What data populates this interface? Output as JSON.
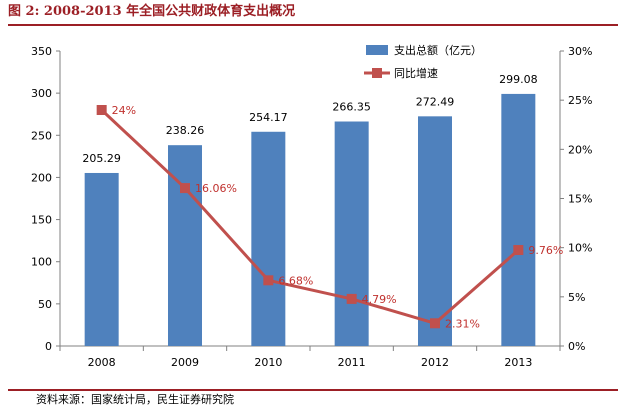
{
  "caption": "图 2: 2008-2013 年全国公共财政体育支出概况",
  "source": "资料来源：国家统计局，民生证券研究院",
  "colors": {
    "bar": "#4f81bd",
    "line": "#c0504d",
    "caption": "#9c1f25"
  },
  "chart_data": {
    "type": "bar+line",
    "categories": [
      "2008",
      "2009",
      "2010",
      "2011",
      "2012",
      "2013"
    ],
    "series": [
      {
        "name": "支出总额（亿元）",
        "type": "bar",
        "axis": "left",
        "values": [
          205.29,
          238.26,
          254.17,
          266.35,
          272.49,
          299.08
        ],
        "labels": [
          "205.29",
          "238.26",
          "254.17",
          "266.35",
          "272.49",
          "299.08"
        ]
      },
      {
        "name": "同比增速",
        "type": "line",
        "axis": "right",
        "values": [
          24,
          16.06,
          6.68,
          4.79,
          2.31,
          9.76
        ],
        "labels": [
          "24%",
          "16.06%",
          "6.68%",
          "4.79%",
          "2.31%",
          "9.76%"
        ]
      }
    ],
    "y_left": {
      "min": 0,
      "max": 350,
      "ticks": [
        "0",
        "50",
        "100",
        "150",
        "200",
        "250",
        "300",
        "350"
      ]
    },
    "y_right": {
      "min": 0,
      "max": 30,
      "ticks": [
        "0%",
        "5%",
        "10%",
        "15%",
        "20%",
        "25%",
        "30%"
      ]
    },
    "grid": false,
    "legend_position": "top-right"
  }
}
